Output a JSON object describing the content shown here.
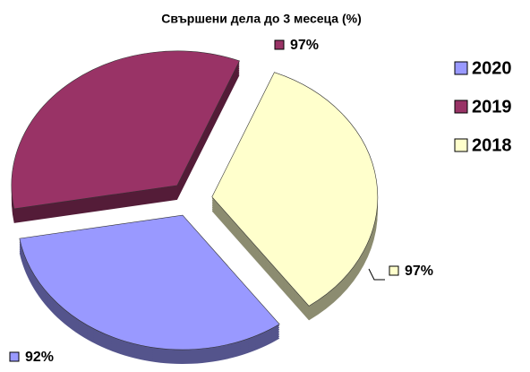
{
  "chart_data": {
    "type": "pie",
    "title": "Свършени дела до 3 месеца (%)",
    "categories": [
      "2020",
      "2019",
      "2018"
    ],
    "values": [
      92,
      97,
      97
    ],
    "value_labels": [
      "92%",
      "97%",
      "97%"
    ],
    "colors": [
      "#9999ff",
      "#993366",
      "#ffffcc"
    ]
  }
}
